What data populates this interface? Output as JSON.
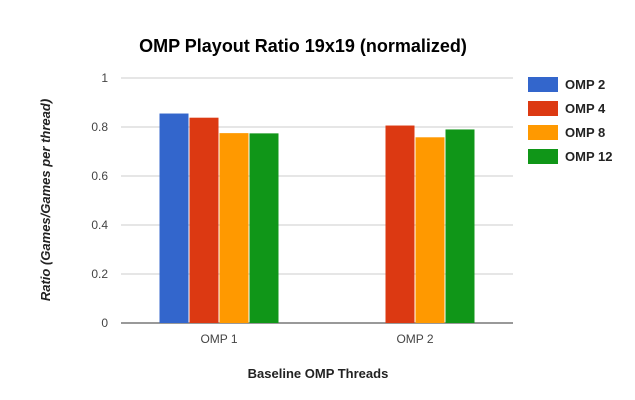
{
  "chart_data": {
    "type": "bar",
    "title": "OMP Playout Ratio 19x19 (normalized)",
    "xlabel": "Baseline OMP Threads",
    "ylabel": "Ratio (Games/Games per thread)",
    "categories": [
      "OMP 1",
      "OMP 2"
    ],
    "ylim": [
      0,
      1
    ],
    "yticks": [
      "0",
      "0.2",
      "0.4",
      "0.6",
      "0.8",
      "1"
    ],
    "grid": true,
    "legend_position": "right",
    "series": [
      {
        "name": "OMP 2",
        "color": "#3366cc",
        "values": [
          0.855,
          null
        ]
      },
      {
        "name": "OMP 4",
        "color": "#dc3912",
        "values": [
          0.838,
          0.806
        ]
      },
      {
        "name": "OMP 8",
        "color": "#ff9900",
        "values": [
          0.775,
          0.758
        ]
      },
      {
        "name": "OMP 12",
        "color": "#109618",
        "values": [
          0.774,
          0.79
        ]
      }
    ]
  }
}
